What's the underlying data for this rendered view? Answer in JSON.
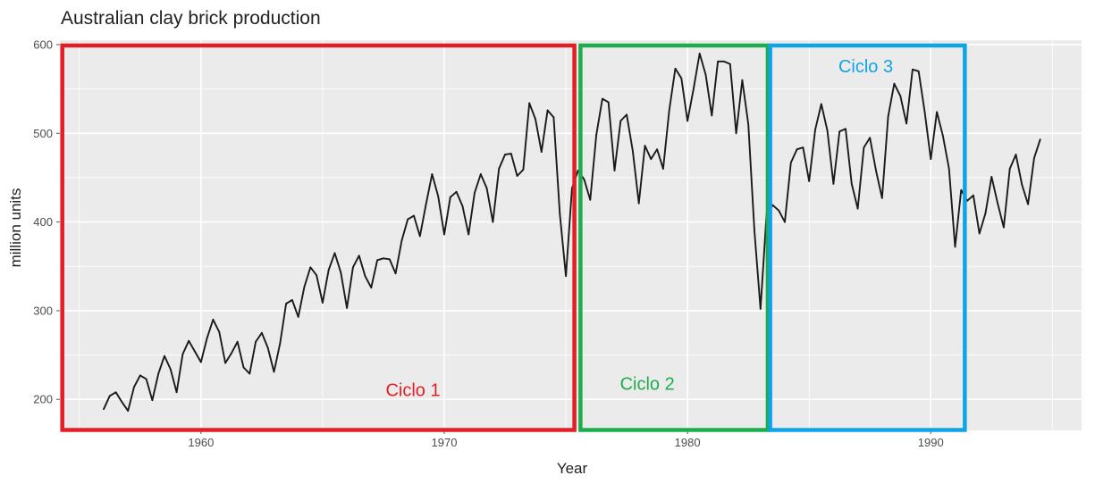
{
  "chart_data": {
    "type": "line",
    "title": "Australian clay brick production",
    "xlabel": "Year",
    "ylabel": "million units",
    "xlim": [
      1954.2,
      1996.2
    ],
    "ylim": [
      165,
      605
    ],
    "x_ticks": [
      1960,
      1970,
      1980,
      1990
    ],
    "y_ticks": [
      200,
      300,
      400,
      500,
      600
    ],
    "grid": true,
    "colors": {
      "panel": "#ebebeb",
      "gridline": "#ffffff",
      "line": "#1a1a1a"
    },
    "series": [
      {
        "frequency": "quarterly",
        "start": 1956.0,
        "step": 0.25,
        "values": [
          189,
          204,
          208,
          197,
          187,
          214,
          227,
          223,
          199,
          229,
          249,
          234,
          208,
          251,
          266,
          254,
          242,
          269,
          290,
          276,
          241,
          252,
          265,
          236,
          229,
          265,
          275,
          258,
          231,
          263,
          308,
          312,
          293,
          327,
          349,
          340,
          309,
          346,
          365,
          343,
          303,
          349,
          362,
          339,
          326,
          357,
          359,
          358,
          342,
          379,
          403,
          407,
          384,
          420,
          454,
          429,
          386,
          428,
          434,
          418,
          386,
          433,
          454,
          438,
          400,
          460,
          476,
          477,
          452,
          459,
          534,
          516,
          479,
          526,
          518,
          409,
          339,
          438,
          458,
          448,
          425,
          498,
          539,
          535,
          458,
          514,
          521,
          480,
          421,
          486,
          471,
          482,
          460,
          526,
          573,
          562,
          514,
          550,
          590,
          566,
          520,
          581,
          581,
          578,
          500,
          560,
          510,
          390,
          302,
          409,
          419,
          413,
          400,
          467,
          482,
          484,
          446,
          504,
          533,
          503,
          443,
          502,
          505,
          443,
          415,
          484,
          495,
          458,
          427,
          519,
          556,
          542,
          511,
          572,
          570,
          524,
          471,
          524,
          497,
          460,
          372,
          436,
          424,
          430,
          387,
          410,
          451,
          421,
          394,
          460,
          476,
          442,
          420,
          472,
          493
        ]
      }
    ],
    "annotations": [
      {
        "text": "Ciclo 1",
        "color": "#e31e25",
        "x_range": [
          1954.3,
          1975.35
        ],
        "y_range": [
          165.5,
          599
        ]
      },
      {
        "text": "Ciclo 2",
        "color": "#1dae4b",
        "x_range": [
          1975.6,
          1983.3
        ],
        "y_range": [
          165.5,
          599
        ]
      },
      {
        "text": "Ciclo 3",
        "color": "#0ea4e6",
        "x_range": [
          1983.4,
          1991.4
        ],
        "y_range": [
          165.5,
          599
        ]
      }
    ]
  }
}
